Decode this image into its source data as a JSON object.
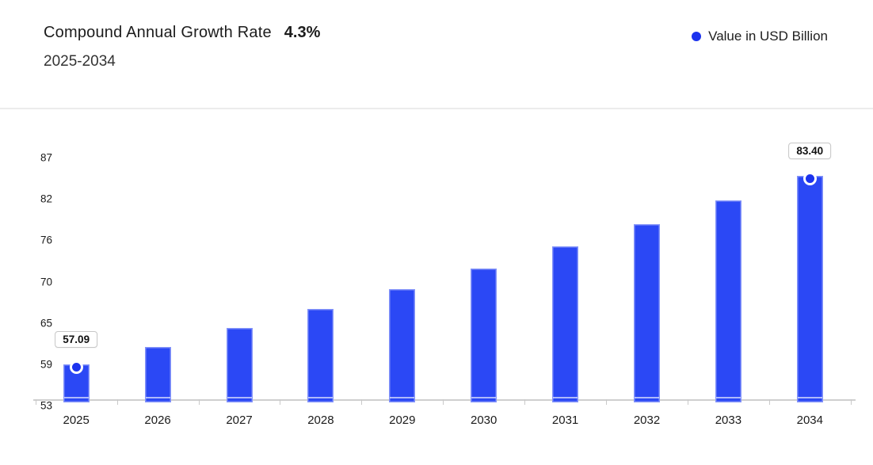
{
  "header": {
    "title": "Compound Annual Growth Rate",
    "cagr_value": "4.3%",
    "subtitle": "2025-2034"
  },
  "chart_data": {
    "type": "bar",
    "title": "Compound Annual Growth Rate",
    "cagr": "4.3%",
    "period": "2025-2034",
    "legend": [
      {
        "label": "Value in USD Billion",
        "color": "#1c33ee"
      }
    ],
    "legend_position": "top-right",
    "categories": [
      "2025",
      "2026",
      "2027",
      "2028",
      "2029",
      "2030",
      "2031",
      "2032",
      "2033",
      "2034"
    ],
    "series": [
      {
        "name": "Value in USD Billion",
        "values": [
          57.09,
          59.54,
          62.11,
          64.78,
          67.56,
          70.47,
          73.5,
          76.66,
          79.95,
          83.4
        ]
      }
    ],
    "point_labels": [
      {
        "category": "2025",
        "label": "57.09"
      },
      {
        "category": "2034",
        "label": "83.40"
      }
    ],
    "y_ticks": [
      "53",
      "59",
      "65",
      "70",
      "76",
      "82",
      "87"
    ],
    "ylim": [
      53,
      87
    ],
    "xlabel": "",
    "ylabel": "",
    "grid": false,
    "bar_color": "#2b48f5",
    "marker_color": "#1c33ee",
    "axis_color": "#cfcfcf"
  }
}
